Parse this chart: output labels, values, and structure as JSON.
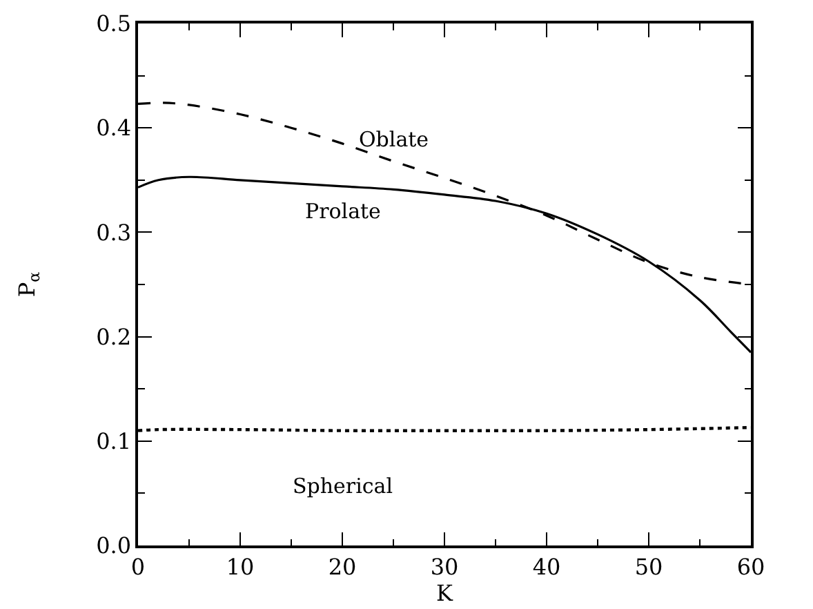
{
  "chart_data": {
    "type": "line",
    "xlabel": "K",
    "ylabel": "P$_{α}$",
    "xlim": [
      0,
      60
    ],
    "xticks": [
      0,
      10,
      20,
      30,
      40,
      50,
      60
    ],
    "ylim": [
      0,
      0.5
    ],
    "yticks": [
      {
        "value": 0,
        "label": "0.0"
      },
      0.1,
      0.2,
      0.3,
      0.4,
      0.5
    ],
    "legend": false,
    "marker": "none",
    "series": [
      {
        "name": "Oblate",
        "color": "#000000",
        "line_style": "dashed",
        "x": [
          0,
          2.5,
          5,
          10,
          15,
          20,
          25,
          30,
          35,
          40,
          45,
          50,
          55,
          60
        ],
        "values": [
          0.423,
          0.424,
          0.422,
          0.413,
          0.4,
          0.385,
          0.368,
          0.352,
          0.335,
          0.316,
          0.293,
          0.271,
          0.257,
          0.25
        ]
      },
      {
        "name": "Prolate",
        "color": "#000000",
        "line_style": "solid",
        "x": [
          0,
          2,
          5,
          10,
          15,
          20,
          25,
          30,
          35,
          40,
          45,
          50,
          55,
          58,
          60
        ],
        "values": [
          0.343,
          0.35,
          0.353,
          0.35,
          0.347,
          0.344,
          0.341,
          0.336,
          0.33,
          0.318,
          0.298,
          0.272,
          0.235,
          0.205,
          0.185
        ]
      },
      {
        "name": "Spherical",
        "color": "#000000",
        "line_style": "dotted",
        "x": [
          0,
          2,
          10,
          20,
          30,
          40,
          50,
          60
        ],
        "values": [
          0.11,
          0.111,
          0.111,
          0.11,
          0.11,
          0.11,
          0.111,
          0.113
        ]
      }
    ]
  }
}
